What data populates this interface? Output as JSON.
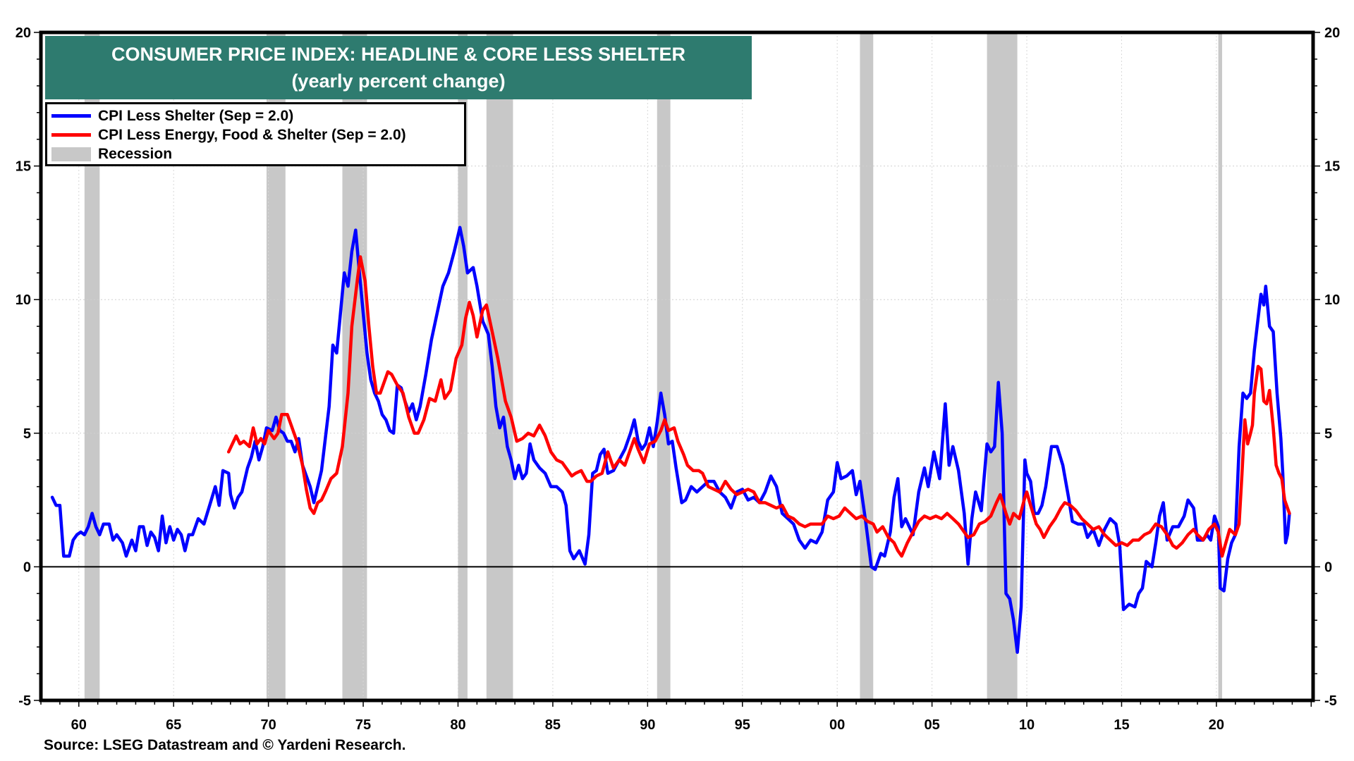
{
  "title": {
    "line1": "CONSUMER PRICE INDEX: HEADLINE & CORE LESS SHELTER",
    "line2": "(yearly percent change)",
    "background_color": "#2e7b6f"
  },
  "legend": {
    "items": [
      {
        "label": "CPI Less Shelter (Sep = 2.0)",
        "kind": "line",
        "color": "#0000ff"
      },
      {
        "label": "CPI Less Energy, Food & Shelter (Sep = 2.0)",
        "kind": "line",
        "color": "#ff0000"
      },
      {
        "label": "Recession",
        "kind": "band",
        "color": "#c8c8c8"
      }
    ]
  },
  "source": "Source: LSEG Datastream and © Yardeni Research.",
  "chart_data": {
    "type": "line",
    "title": "CONSUMER PRICE INDEX: HEADLINE & CORE LESS SHELTER (yearly percent change)",
    "xlabel": "",
    "ylabel": "",
    "xlim": [
      1958.0,
      2025.1
    ],
    "ylim": [
      -5,
      20
    ],
    "grid": true,
    "legend_position": "top-left",
    "x_ticks": [
      {
        "value": 1960,
        "label": "60"
      },
      {
        "value": 1965,
        "label": "65"
      },
      {
        "value": 1970,
        "label": "70"
      },
      {
        "value": 1975,
        "label": "75"
      },
      {
        "value": 1980,
        "label": "80"
      },
      {
        "value": 1985,
        "label": "85"
      },
      {
        "value": 1990,
        "label": "90"
      },
      {
        "value": 1995,
        "label": "95"
      },
      {
        "value": 2000,
        "label": "00"
      },
      {
        "value": 2005,
        "label": "05"
      },
      {
        "value": 2010,
        "label": "10"
      },
      {
        "value": 2015,
        "label": "15"
      },
      {
        "value": 2020,
        "label": "20"
      }
    ],
    "y_ticks": [
      {
        "value": -5,
        "label": "-5"
      },
      {
        "value": 0,
        "label": "0"
      },
      {
        "value": 5,
        "label": "5"
      },
      {
        "value": 10,
        "label": "10"
      },
      {
        "value": 15,
        "label": "15"
      },
      {
        "value": 20,
        "label": "20"
      }
    ],
    "recessions": [
      [
        1960.3,
        1961.1
      ],
      [
        1969.9,
        1970.9
      ],
      [
        1973.9,
        1975.2
      ],
      [
        1980.0,
        1980.5
      ],
      [
        1981.5,
        1982.9
      ],
      [
        1990.5,
        1991.2
      ],
      [
        2001.2,
        2001.9
      ],
      [
        2007.9,
        2009.5
      ],
      [
        2020.1,
        2020.3
      ]
    ],
    "series": [
      {
        "name": "CPI Less Shelter (Sep = 2.0)",
        "color": "#0000ff",
        "x": [
          1958.6,
          1958.8,
          1959.0,
          1959.2,
          1959.5,
          1959.7,
          1959.9,
          1960.1,
          1960.3,
          1960.5,
          1960.7,
          1960.9,
          1961.1,
          1961.3,
          1961.6,
          1961.8,
          1962.0,
          1962.3,
          1962.5,
          1962.8,
          1963.0,
          1963.2,
          1963.4,
          1963.6,
          1963.8,
          1964.0,
          1964.2,
          1964.4,
          1964.6,
          1964.8,
          1965.0,
          1965.2,
          1965.4,
          1965.6,
          1965.8,
          1966.0,
          1966.3,
          1966.6,
          1966.9,
          1967.2,
          1967.4,
          1967.6,
          1967.9,
          1968.0,
          1968.2,
          1968.4,
          1968.6,
          1968.9,
          1969.1,
          1969.3,
          1969.5,
          1969.7,
          1969.9,
          1970.2,
          1970.4,
          1970.6,
          1970.8,
          1971.0,
          1971.2,
          1971.4,
          1971.6,
          1971.8,
          1972.0,
          1972.2,
          1972.4,
          1972.6,
          1972.8,
          1973.0,
          1973.2,
          1973.4,
          1973.6,
          1973.8,
          1974.0,
          1974.2,
          1974.4,
          1974.6,
          1974.8,
          1975.0,
          1975.2,
          1975.4,
          1975.6,
          1975.8,
          1976.0,
          1976.2,
          1976.4,
          1976.6,
          1976.8,
          1977.0,
          1977.2,
          1977.4,
          1977.6,
          1977.8,
          1978.0,
          1978.3,
          1978.6,
          1978.9,
          1979.2,
          1979.5,
          1979.8,
          1980.1,
          1980.3,
          1980.5,
          1980.8,
          1981.0,
          1981.3,
          1981.6,
          1981.8,
          1982.0,
          1982.2,
          1982.4,
          1982.6,
          1982.8,
          1983.0,
          1983.2,
          1983.4,
          1983.6,
          1983.8,
          1984.0,
          1984.3,
          1984.6,
          1984.9,
          1985.2,
          1985.5,
          1985.7,
          1985.9,
          1986.1,
          1986.4,
          1986.7,
          1986.9,
          1987.1,
          1987.3,
          1987.5,
          1987.7,
          1987.9,
          1988.2,
          1988.5,
          1988.8,
          1989.1,
          1989.3,
          1989.5,
          1989.7,
          1989.9,
          1990.1,
          1990.3,
          1990.5,
          1990.7,
          1990.9,
          1991.1,
          1991.3,
          1991.5,
          1991.8,
          1992.0,
          1992.3,
          1992.6,
          1992.9,
          1993.2,
          1993.5,
          1993.8,
          1994.1,
          1994.4,
          1994.7,
          1995.0,
          1995.3,
          1995.6,
          1995.9,
          1996.2,
          1996.5,
          1996.8,
          1997.1,
          1997.4,
          1997.7,
          1998.0,
          1998.3,
          1998.6,
          1998.9,
          1999.2,
          1999.5,
          1999.8,
          2000.0,
          2000.2,
          2000.5,
          2000.8,
          2001.0,
          2001.2,
          2001.5,
          2001.8,
          2002.0,
          2002.3,
          2002.5,
          2002.8,
          2003.0,
          2003.2,
          2003.4,
          2003.6,
          2003.8,
          2004.0,
          2004.3,
          2004.6,
          2004.8,
          2005.1,
          2005.4,
          2005.7,
          2005.9,
          2006.1,
          2006.4,
          2006.7,
          2006.9,
          2007.1,
          2007.3,
          2007.6,
          2007.9,
          2008.1,
          2008.3,
          2008.5,
          2008.7,
          2008.9,
          2009.1,
          2009.3,
          2009.5,
          2009.7,
          2009.9,
          2010.0,
          2010.2,
          2010.4,
          2010.6,
          2010.8,
          2011.0,
          2011.3,
          2011.6,
          2011.9,
          2012.2,
          2012.4,
          2012.7,
          2013.0,
          2013.2,
          2013.5,
          2013.8,
          2014.1,
          2014.4,
          2014.7,
          2014.9,
          2015.1,
          2015.4,
          2015.7,
          2015.9,
          2016.1,
          2016.3,
          2016.6,
          2016.8,
          2017.0,
          2017.2,
          2017.4,
          2017.7,
          2018.0,
          2018.3,
          2018.5,
          2018.8,
          2019.0,
          2019.3,
          2019.5,
          2019.7,
          2019.9,
          2020.1,
          2020.2,
          2020.4,
          2020.6,
          2020.8,
          2021.0,
          2021.2,
          2021.4,
          2021.6,
          2021.8,
          2022.0,
          2022.2,
          2022.35,
          2022.5,
          2022.6,
          2022.8,
          2023.0,
          2023.2,
          2023.4,
          2023.5,
          2023.65,
          2023.75,
          2023.85
        ],
        "values": [
          2.6,
          2.3,
          2.3,
          0.4,
          0.4,
          1.0,
          1.2,
          1.3,
          1.2,
          1.5,
          2.0,
          1.5,
          1.2,
          1.6,
          1.6,
          1.0,
          1.2,
          0.9,
          0.4,
          1.0,
          0.6,
          1.5,
          1.5,
          0.8,
          1.3,
          1.1,
          0.6,
          1.9,
          0.9,
          1.5,
          1.0,
          1.4,
          1.2,
          0.6,
          1.2,
          1.2,
          1.8,
          1.6,
          2.3,
          3.0,
          2.3,
          3.6,
          3.5,
          2.7,
          2.2,
          2.6,
          2.8,
          3.7,
          4.1,
          4.7,
          4.0,
          4.5,
          5.2,
          5.1,
          5.6,
          5.1,
          5.0,
          4.7,
          4.7,
          4.3,
          4.8,
          3.8,
          3.4,
          3.0,
          2.4,
          3.0,
          3.6,
          4.8,
          6.0,
          8.3,
          8.0,
          9.5,
          11.0,
          10.5,
          11.8,
          12.6,
          11.0,
          9.5,
          8.0,
          7.0,
          6.5,
          6.2,
          5.7,
          5.5,
          5.1,
          5.0,
          6.8,
          6.7,
          6.2,
          5.8,
          6.1,
          5.5,
          6.0,
          7.2,
          8.5,
          9.5,
          10.5,
          11.0,
          11.8,
          12.7,
          12.0,
          11.0,
          11.2,
          10.5,
          9.2,
          8.7,
          7.5,
          6.0,
          5.2,
          5.6,
          4.5,
          4.0,
          3.3,
          3.8,
          3.3,
          3.5,
          4.6,
          4.0,
          3.7,
          3.5,
          3.0,
          3.0,
          2.8,
          2.3,
          0.6,
          0.3,
          0.6,
          0.1,
          1.2,
          3.5,
          3.6,
          4.2,
          4.4,
          3.5,
          3.6,
          4.0,
          4.4,
          5.0,
          5.5,
          4.7,
          4.4,
          4.6,
          5.2,
          4.5,
          5.4,
          6.5,
          5.7,
          4.6,
          4.7,
          3.7,
          2.4,
          2.5,
          3.0,
          2.8,
          3.0,
          3.2,
          3.2,
          2.8,
          2.6,
          2.2,
          2.8,
          2.9,
          2.5,
          2.6,
          2.4,
          2.8,
          3.4,
          3.0,
          2.0,
          1.8,
          1.6,
          1.0,
          0.7,
          1.0,
          0.9,
          1.3,
          2.5,
          2.8,
          3.9,
          3.3,
          3.4,
          3.6,
          2.7,
          3.2,
          1.7,
          0.0,
          -0.1,
          0.5,
          0.4,
          1.3,
          2.6,
          3.3,
          1.5,
          1.8,
          1.5,
          1.2,
          2.8,
          3.7,
          3.0,
          4.3,
          3.3,
          6.1,
          3.8,
          4.5,
          3.6,
          2.0,
          0.1,
          1.8,
          2.8,
          2.1,
          4.6,
          4.3,
          4.5,
          6.9,
          5.0,
          -1.0,
          -1.2,
          -2.0,
          -3.2,
          -1.5,
          4.0,
          3.5,
          3.2,
          2.0,
          2.0,
          2.3,
          3.0,
          4.5,
          4.5,
          3.8,
          2.6,
          1.7,
          1.6,
          1.6,
          1.1,
          1.4,
          0.8,
          1.4,
          1.8,
          1.6,
          0.8,
          -1.6,
          -1.4,
          -1.5,
          -1.0,
          -0.8,
          0.2,
          0.0,
          0.9,
          1.9,
          2.4,
          1.0,
          1.5,
          1.5,
          1.9,
          2.5,
          2.2,
          1.0,
          1.0,
          1.2,
          1.0,
          1.9,
          1.5,
          -0.8,
          -0.9,
          0.3,
          0.9,
          1.2,
          4.5,
          6.5,
          6.3,
          6.5,
          8.1,
          9.3,
          10.2,
          9.8,
          10.5,
          9.0,
          8.8,
          6.5,
          4.8,
          3.5,
          0.9,
          1.2,
          2.0
        ]
      },
      {
        "name": "CPI Less Energy, Food & Shelter (Sep = 2.0)",
        "color": "#ff0000",
        "x": [
          1967.9,
          1968.1,
          1968.3,
          1968.5,
          1968.7,
          1969.0,
          1969.2,
          1969.4,
          1969.6,
          1969.8,
          1970.0,
          1970.3,
          1970.5,
          1970.7,
          1971.0,
          1971.2,
          1971.5,
          1971.8,
          1972.0,
          1972.2,
          1972.4,
          1972.6,
          1972.8,
          1973.0,
          1973.3,
          1973.6,
          1973.9,
          1974.2,
          1974.4,
          1974.7,
          1974.85,
          1975.1,
          1975.3,
          1975.5,
          1975.7,
          1975.9,
          1976.1,
          1976.3,
          1976.5,
          1976.8,
          1977.1,
          1977.4,
          1977.7,
          1977.9,
          1978.2,
          1978.5,
          1978.8,
          1979.1,
          1979.3,
          1979.6,
          1979.9,
          1980.2,
          1980.4,
          1980.6,
          1980.8,
          1981.0,
          1981.3,
          1981.5,
          1981.8,
          1982.1,
          1982.3,
          1982.5,
          1982.8,
          1983.1,
          1983.4,
          1983.7,
          1984.0,
          1984.3,
          1984.6,
          1984.9,
          1985.2,
          1985.5,
          1985.8,
          1986.0,
          1986.2,
          1986.5,
          1986.8,
          1987.0,
          1987.3,
          1987.6,
          1987.9,
          1988.2,
          1988.5,
          1988.8,
          1989.0,
          1989.3,
          1989.5,
          1989.8,
          1990.1,
          1990.4,
          1990.7,
          1990.9,
          1991.1,
          1991.4,
          1991.6,
          1991.9,
          1992.1,
          1992.4,
          1992.7,
          1992.9,
          1993.2,
          1993.5,
          1993.8,
          1994.1,
          1994.4,
          1994.7,
          1995.0,
          1995.3,
          1995.6,
          1995.9,
          1996.2,
          1996.5,
          1996.8,
          1997.1,
          1997.4,
          1997.7,
          1998.0,
          1998.3,
          1998.6,
          1998.9,
          1999.2,
          1999.5,
          1999.8,
          2000.1,
          2000.4,
          2000.7,
          2001.0,
          2001.3,
          2001.6,
          2001.9,
          2002.1,
          2002.4,
          2002.7,
          2003.0,
          2003.2,
          2003.4,
          2003.7,
          2004.0,
          2004.3,
          2004.6,
          2004.9,
          2005.2,
          2005.5,
          2005.8,
          2006.1,
          2006.4,
          2006.7,
          2006.9,
          2007.2,
          2007.5,
          2007.8,
          2008.1,
          2008.4,
          2008.6,
          2008.9,
          2009.1,
          2009.3,
          2009.6,
          2009.9,
          2010.0,
          2010.2,
          2010.5,
          2010.7,
          2010.9,
          2011.2,
          2011.5,
          2011.8,
          2012.0,
          2012.3,
          2012.6,
          2012.9,
          2013.2,
          2013.5,
          2013.8,
          2014.1,
          2014.4,
          2014.7,
          2015.0,
          2015.3,
          2015.6,
          2015.9,
          2016.2,
          2016.5,
          2016.8,
          2017.1,
          2017.4,
          2017.7,
          2017.9,
          2018.2,
          2018.5,
          2018.8,
          2019.0,
          2019.3,
          2019.6,
          2019.9,
          2020.1,
          2020.3,
          2020.5,
          2020.7,
          2021.0,
          2021.2,
          2021.35,
          2021.5,
          2021.65,
          2021.8,
          2021.9,
          2022.0,
          2022.2,
          2022.35,
          2022.5,
          2022.65,
          2022.8,
          2023.0,
          2023.15,
          2023.3,
          2023.45,
          2023.6,
          2023.85
        ],
        "values": [
          4.3,
          4.6,
          4.9,
          4.6,
          4.7,
          4.5,
          5.2,
          4.6,
          4.8,
          4.6,
          5.1,
          4.8,
          5.0,
          5.7,
          5.7,
          5.3,
          4.7,
          3.8,
          2.9,
          2.2,
          2.0,
          2.4,
          2.5,
          2.8,
          3.3,
          3.5,
          4.5,
          6.5,
          9.0,
          10.8,
          11.6,
          10.7,
          9.0,
          7.5,
          6.5,
          6.5,
          6.9,
          7.3,
          7.2,
          6.8,
          6.5,
          5.6,
          5.0,
          5.0,
          5.5,
          6.3,
          6.2,
          7.0,
          6.3,
          6.6,
          7.8,
          8.3,
          9.3,
          9.9,
          9.4,
          8.6,
          9.6,
          9.8,
          8.8,
          7.8,
          7.0,
          6.2,
          5.6,
          4.7,
          4.8,
          5.0,
          4.9,
          5.3,
          4.9,
          4.3,
          4.0,
          3.9,
          3.6,
          3.4,
          3.5,
          3.6,
          3.2,
          3.2,
          3.4,
          3.5,
          4.3,
          3.7,
          4.0,
          3.8,
          4.2,
          4.8,
          4.4,
          3.9,
          4.6,
          4.7,
          5.1,
          5.5,
          5.1,
          5.2,
          4.7,
          4.2,
          3.8,
          3.6,
          3.6,
          3.5,
          3.0,
          2.9,
          2.8,
          3.2,
          2.9,
          2.7,
          2.8,
          2.9,
          2.8,
          2.4,
          2.4,
          2.3,
          2.2,
          2.3,
          1.9,
          1.8,
          1.6,
          1.5,
          1.6,
          1.6,
          1.6,
          1.9,
          1.8,
          1.9,
          2.2,
          2.0,
          1.8,
          1.9,
          1.7,
          1.6,
          1.3,
          1.5,
          1.1,
          0.9,
          0.6,
          0.4,
          0.9,
          1.3,
          1.7,
          1.9,
          1.8,
          1.9,
          1.8,
          2.0,
          1.8,
          1.6,
          1.3,
          1.1,
          1.2,
          1.6,
          1.7,
          1.9,
          2.4,
          2.7,
          2.0,
          1.6,
          2.0,
          1.8,
          2.6,
          2.8,
          2.3,
          1.6,
          1.4,
          1.1,
          1.5,
          1.8,
          2.2,
          2.4,
          2.3,
          2.1,
          1.8,
          1.6,
          1.4,
          1.5,
          1.2,
          1.0,
          0.8,
          0.9,
          0.8,
          1.0,
          1.0,
          1.2,
          1.3,
          1.6,
          1.5,
          1.2,
          0.8,
          0.7,
          0.9,
          1.2,
          1.4,
          1.2,
          1.0,
          1.4,
          1.6,
          1.3,
          0.4,
          0.9,
          1.4,
          1.2,
          1.6,
          3.5,
          5.5,
          4.6,
          5.0,
          5.3,
          6.5,
          7.5,
          7.4,
          6.2,
          6.1,
          6.6,
          5.2,
          3.8,
          3.5,
          3.3,
          2.5,
          2.0
        ]
      }
    ]
  }
}
